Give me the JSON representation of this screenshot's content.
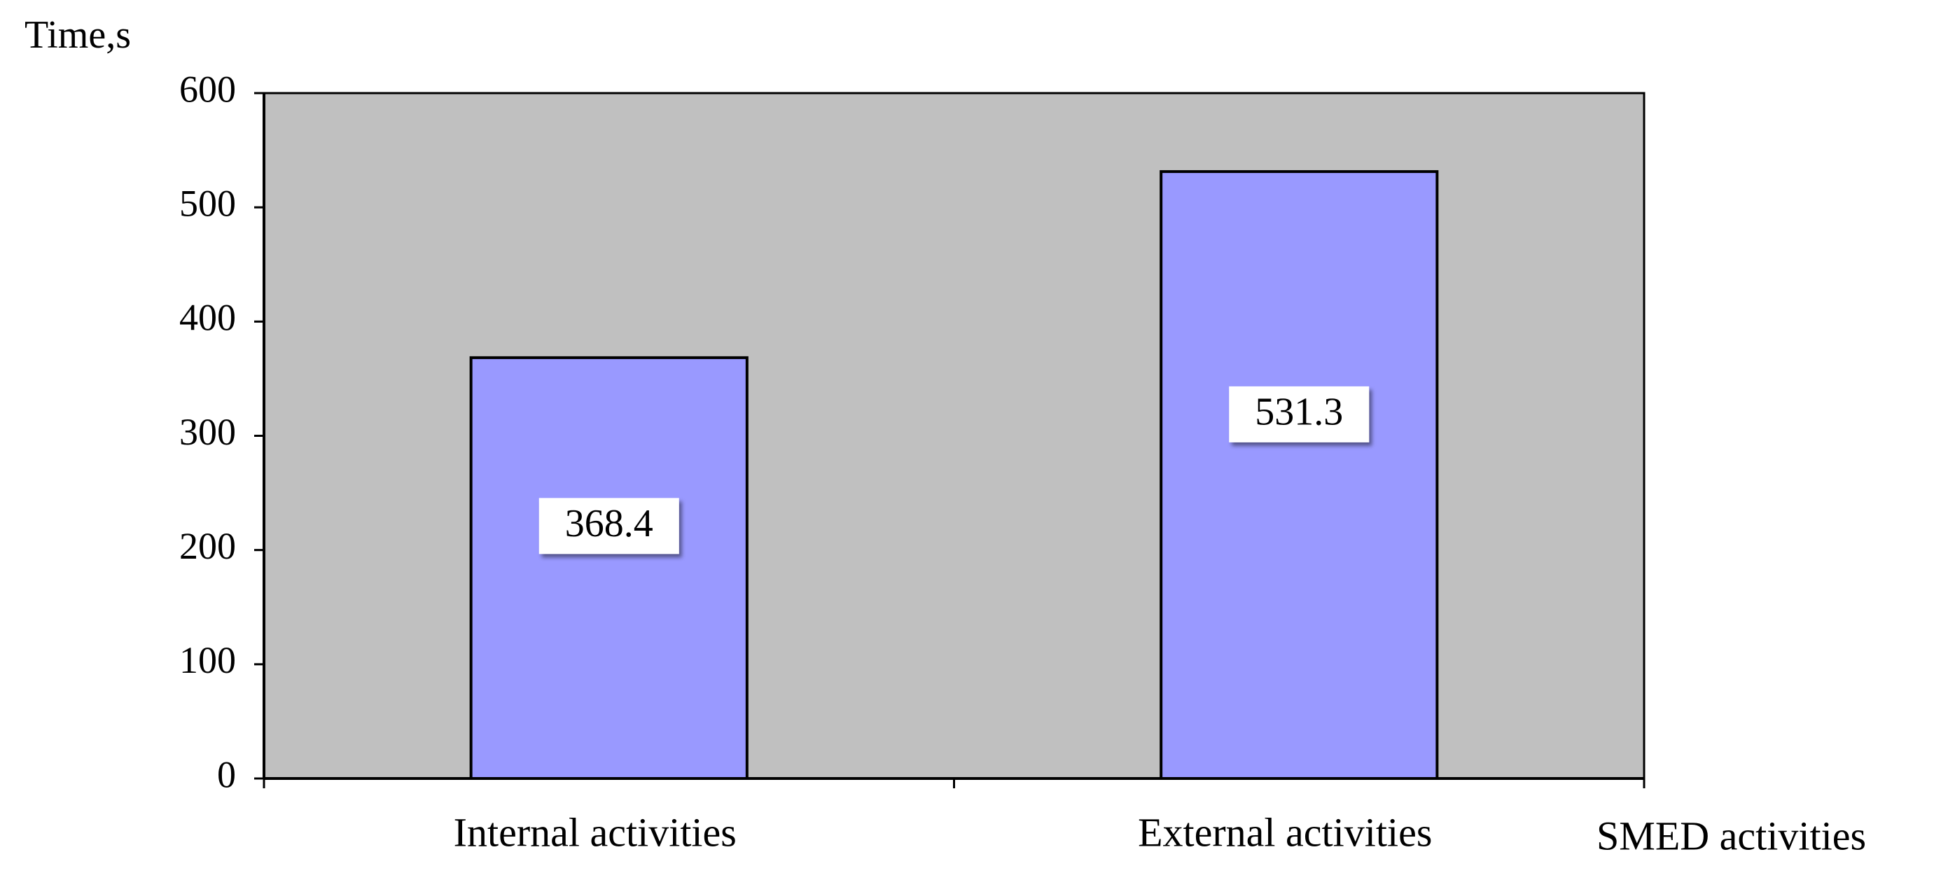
{
  "chart_data": {
    "type": "bar",
    "y_label": "Time,s",
    "x_label": "SMED activities",
    "categories": [
      "Internal activities",
      "External activities"
    ],
    "values": [
      368.4,
      531.3
    ],
    "color": "#9999ff",
    "plot_background": "#c0c0c0",
    "ylim": [
      0,
      600
    ],
    "yticks": [
      0,
      100,
      200,
      300,
      400,
      500,
      600
    ]
  }
}
